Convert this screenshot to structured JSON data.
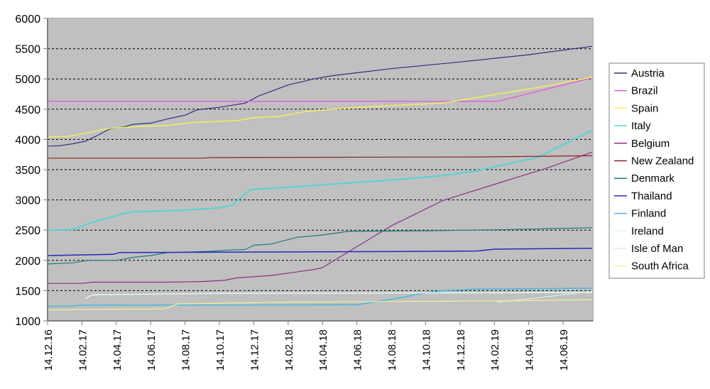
{
  "chart_data": {
    "type": "line",
    "title": "",
    "xlabel": "",
    "ylabel": "",
    "ylim": [
      1000,
      6000
    ],
    "yticks": [
      1000,
      1500,
      2000,
      2500,
      3000,
      3500,
      4000,
      4500,
      5000,
      5500,
      6000
    ],
    "grid": "horizontal dashed",
    "legend_position": "right",
    "background": "#c0c0c0",
    "x_tick_labels": [
      "14.12.16",
      "14.02.17",
      "14.04.17",
      "14.06.17",
      "14.08.17",
      "14.10.17",
      "14.12.17",
      "14.02.18",
      "14.04.18",
      "14.06.18",
      "14.08.18",
      "14.10.18",
      "14.12.18",
      "14.02.19",
      "14.04.19",
      "14.06.19"
    ],
    "x_index_note": "x values are months since 14.12.16 (0 = 14.12.16, 30 = 14.06.19, end ≈ 31.7)",
    "series": [
      {
        "name": "Austria",
        "color": "#2e2e7a",
        "width": 1.2,
        "points": [
          [
            0,
            3890
          ],
          [
            0.7,
            3895
          ],
          [
            1.5,
            3930
          ],
          [
            2.2,
            3970
          ],
          [
            2.8,
            4050
          ],
          [
            3.6,
            4170
          ],
          [
            4.5,
            4210
          ],
          [
            5,
            4250
          ],
          [
            6,
            4270
          ],
          [
            7,
            4340
          ],
          [
            8,
            4400
          ],
          [
            8.7,
            4490
          ],
          [
            10,
            4530
          ],
          [
            11.5,
            4600
          ],
          [
            12.3,
            4720
          ],
          [
            14,
            4900
          ],
          [
            15.5,
            5000
          ],
          [
            16.5,
            5050
          ],
          [
            20,
            5170
          ],
          [
            24,
            5280
          ],
          [
            28,
            5400
          ],
          [
            31.7,
            5540
          ]
        ]
      },
      {
        "name": "Brazil",
        "color": "#e060e0",
        "width": 1.5,
        "points": [
          [
            0,
            4630
          ],
          [
            26.2,
            4630
          ],
          [
            31.7,
            5020
          ]
        ]
      },
      {
        "name": "Spain",
        "color": "#f0f060",
        "width": 1.5,
        "points": [
          [
            0,
            4040
          ],
          [
            1.2,
            4050
          ],
          [
            2.5,
            4120
          ],
          [
            3.5,
            4180
          ],
          [
            5,
            4210
          ],
          [
            7,
            4230
          ],
          [
            8.5,
            4280
          ],
          [
            10,
            4300
          ],
          [
            11,
            4310
          ],
          [
            12,
            4360
          ],
          [
            13.5,
            4380
          ],
          [
            15,
            4460
          ],
          [
            17,
            4510
          ],
          [
            20,
            4560
          ],
          [
            23,
            4600
          ],
          [
            26,
            4740
          ],
          [
            29,
            4880
          ],
          [
            31.7,
            5030
          ]
        ]
      },
      {
        "name": "Italy",
        "color": "#60d0d0",
        "width": 2.2,
        "points": [
          [
            0,
            2500
          ],
          [
            1.5,
            2510
          ],
          [
            2.5,
            2620
          ],
          [
            3.5,
            2700
          ],
          [
            4.5,
            2780
          ],
          [
            5,
            2800
          ],
          [
            8,
            2830
          ],
          [
            10,
            2870
          ],
          [
            10.8,
            2920
          ],
          [
            11.3,
            3050
          ],
          [
            11.8,
            3170
          ],
          [
            13,
            3190
          ],
          [
            16,
            3250
          ],
          [
            20,
            3330
          ],
          [
            23,
            3400
          ],
          [
            25,
            3480
          ],
          [
            27,
            3610
          ],
          [
            28.5,
            3700
          ],
          [
            31.7,
            4150
          ]
        ]
      },
      {
        "name": "Belgium",
        "color": "#883088",
        "width": 1.2,
        "points": [
          [
            0,
            1620
          ],
          [
            2,
            1620
          ],
          [
            2.6,
            1640
          ],
          [
            7,
            1640
          ],
          [
            9,
            1650
          ],
          [
            10.3,
            1670
          ],
          [
            11,
            1710
          ],
          [
            12.5,
            1740
          ],
          [
            13,
            1750
          ],
          [
            14.3,
            1800
          ],
          [
            15.5,
            1850
          ],
          [
            16,
            1880
          ],
          [
            20,
            2570
          ],
          [
            23,
            2990
          ],
          [
            26.5,
            3300
          ],
          [
            29,
            3520
          ],
          [
            31.7,
            3790
          ]
        ]
      },
      {
        "name": "New Zealand",
        "color": "#8c2020",
        "width": 1.2,
        "points": [
          [
            0,
            3690
          ],
          [
            9,
            3690
          ],
          [
            9.5,
            3700
          ],
          [
            17,
            3705
          ],
          [
            25,
            3710
          ],
          [
            31.7,
            3730
          ]
        ]
      },
      {
        "name": "Denmark",
        "color": "#207878",
        "width": 1.2,
        "points": [
          [
            0,
            1940
          ],
          [
            1.5,
            1960
          ],
          [
            2.3,
            2000
          ],
          [
            4,
            2000
          ],
          [
            5,
            2050
          ],
          [
            6,
            2080
          ],
          [
            7,
            2130
          ],
          [
            8.5,
            2140
          ],
          [
            9.5,
            2150
          ],
          [
            10.5,
            2170
          ],
          [
            11.5,
            2180
          ],
          [
            12,
            2250
          ],
          [
            13,
            2270
          ],
          [
            14.5,
            2380
          ],
          [
            16,
            2420
          ],
          [
            17.5,
            2480
          ],
          [
            22,
            2490
          ],
          [
            27,
            2510
          ],
          [
            31.7,
            2540
          ]
        ]
      },
      {
        "name": "Thailand",
        "color": "#2828b8",
        "width": 1.5,
        "points": [
          [
            0,
            2080
          ],
          [
            2,
            2090
          ],
          [
            3.8,
            2100
          ],
          [
            4.2,
            2130
          ],
          [
            10,
            2135
          ],
          [
            20,
            2145
          ],
          [
            25,
            2155
          ],
          [
            26,
            2185
          ],
          [
            31.7,
            2200
          ]
        ]
      },
      {
        "name": "Finland",
        "color": "#48b8e0",
        "width": 1.5,
        "points": [
          [
            0,
            1240
          ],
          [
            1.5,
            1245
          ],
          [
            2,
            1260
          ],
          [
            10,
            1260
          ],
          [
            18,
            1265
          ],
          [
            20.5,
            1380
          ],
          [
            21.7,
            1450
          ],
          [
            23,
            1500
          ],
          [
            25,
            1525
          ],
          [
            31.7,
            1540
          ]
        ]
      },
      {
        "name": "Ireland",
        "color": "#e4f4f4",
        "width": 1.5,
        "points": [
          [
            2.2,
            1370
          ],
          [
            2.6,
            1430
          ],
          [
            5.5,
            1440
          ],
          [
            10,
            1455
          ],
          [
            20,
            1460
          ],
          [
            31.7,
            1470
          ]
        ]
      },
      {
        "name": "Isle of Man",
        "color": "#d8f0e0",
        "width": 1.2,
        "points": [
          [
            26.2,
            1310
          ],
          [
            28.5,
            1380
          ],
          [
            31.7,
            1490
          ]
        ]
      },
      {
        "name": "South Africa",
        "color": "#f0f0a0",
        "width": 1.2,
        "points": [
          [
            0,
            1180
          ],
          [
            3.5,
            1190
          ],
          [
            6.8,
            1200
          ],
          [
            7.6,
            1280
          ],
          [
            14,
            1310
          ],
          [
            20,
            1320
          ],
          [
            27,
            1330
          ],
          [
            31.7,
            1350
          ]
        ]
      }
    ]
  },
  "legend": {
    "items": [
      "Austria",
      "Brazil",
      "Spain",
      "Italy",
      "Belgium",
      "New Zealand",
      "Denmark",
      "Thailand",
      "Finland",
      "Ireland",
      "Isle of Man",
      "South Africa"
    ]
  }
}
